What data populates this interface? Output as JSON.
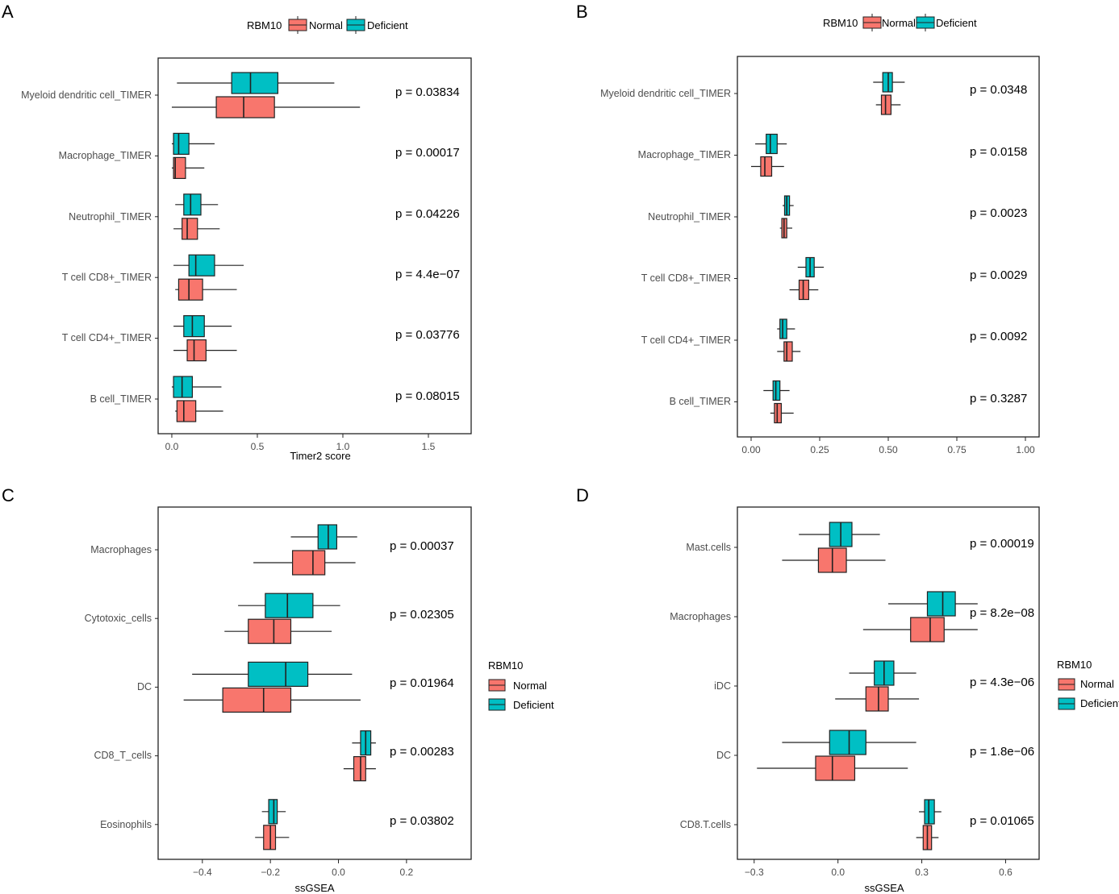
{
  "colors": {
    "normal": "#F8766D",
    "deficient": "#00BFC4",
    "stroke": "#222222"
  },
  "chart_data": [
    {
      "panel": "A",
      "type": "boxplot",
      "orientation": "horizontal",
      "xlabel": "Timer2 score",
      "xlim": [
        -0.08,
        1.75
      ],
      "xticks": [
        0,
        0.5,
        1,
        1.5
      ],
      "xtick_labels": [
        "0.0",
        "0.5",
        "1.0",
        "1.5"
      ],
      "legend": {
        "title": "RBM10",
        "position": "top",
        "entries": [
          "Normal",
          "Deficient"
        ]
      },
      "categories": [
        "Myeloid dendritic cell_TIMER",
        "Macrophage_TIMER",
        "Neutrophil_TIMER",
        "T cell CD8+_TIMER",
        "T cell CD4+_TIMER",
        "B cell_TIMER"
      ],
      "p_values": [
        "p = 0.03834",
        "p = 0.00017",
        "p = 0.04226",
        "p = 4.4e−07",
        "p = 0.03776",
        "p = 0.08015"
      ],
      "series": [
        {
          "name": "Normal",
          "boxes": [
            {
              "whisker_low": 0.0,
              "q1": 0.26,
              "median": 0.42,
              "q3": 0.6,
              "whisker_high": 1.1
            },
            {
              "whisker_low": 0.0,
              "q1": 0.01,
              "median": 0.02,
              "q3": 0.08,
              "whisker_high": 0.19
            },
            {
              "whisker_low": 0.01,
              "q1": 0.06,
              "median": 0.09,
              "q3": 0.15,
              "whisker_high": 0.28
            },
            {
              "whisker_low": 0.02,
              "q1": 0.04,
              "median": 0.1,
              "q3": 0.18,
              "whisker_high": 0.38
            },
            {
              "whisker_low": 0.01,
              "q1": 0.09,
              "median": 0.13,
              "q3": 0.2,
              "whisker_high": 0.38
            },
            {
              "whisker_low": 0.02,
              "q1": 0.03,
              "median": 0.07,
              "q3": 0.14,
              "whisker_high": 0.3
            }
          ]
        },
        {
          "name": "Deficient",
          "boxes": [
            {
              "whisker_low": 0.03,
              "q1": 0.35,
              "median": 0.46,
              "q3": 0.62,
              "whisker_high": 0.95
            },
            {
              "whisker_low": 0.0,
              "q1": 0.01,
              "median": 0.04,
              "q3": 0.1,
              "whisker_high": 0.25
            },
            {
              "whisker_low": 0.02,
              "q1": 0.07,
              "median": 0.11,
              "q3": 0.17,
              "whisker_high": 0.27
            },
            {
              "whisker_low": 0.01,
              "q1": 0.1,
              "median": 0.14,
              "q3": 0.25,
              "whisker_high": 0.42
            },
            {
              "whisker_low": 0.01,
              "q1": 0.07,
              "median": 0.12,
              "q3": 0.19,
              "whisker_high": 0.35
            },
            {
              "whisker_low": 0.0,
              "q1": 0.01,
              "median": 0.06,
              "q3": 0.12,
              "whisker_high": 0.29
            }
          ]
        }
      ]
    },
    {
      "panel": "B",
      "type": "boxplot",
      "orientation": "horizontal",
      "xlabel": "",
      "xlim": [
        -0.05,
        1.05
      ],
      "xticks": [
        0,
        0.25,
        0.5,
        0.75,
        1
      ],
      "xtick_labels": [
        "0.00",
        "0.25",
        "0.50",
        "0.75",
        "1.00"
      ],
      "legend": {
        "title": "RBM10",
        "position": "top",
        "entries": [
          "Normal",
          "Deficient"
        ]
      },
      "categories": [
        "Myeloid dendritic cell_TIMER",
        "Macrophage_TIMER",
        "Neutrophil_TIMER",
        "T cell CD8+_TIMER",
        "T cell CD4+_TIMER",
        "B cell_TIMER"
      ],
      "p_values": [
        "p = 0.0348",
        "p = 0.0158",
        "p = 0.0023",
        "p = 0.0029",
        "p = 0.0092",
        "p = 0.3287"
      ],
      "series": [
        {
          "name": "Normal",
          "boxes": [
            {
              "whisker_low": 0.455,
              "q1": 0.475,
              "median": 0.49,
              "q3": 0.51,
              "whisker_high": 0.545
            },
            {
              "whisker_low": 0.0,
              "q1": 0.035,
              "median": 0.05,
              "q3": 0.075,
              "whisker_high": 0.12
            },
            {
              "whisker_low": 0.105,
              "q1": 0.112,
              "median": 0.12,
              "q3": 0.13,
              "whisker_high": 0.15
            },
            {
              "whisker_low": 0.14,
              "q1": 0.175,
              "median": 0.19,
              "q3": 0.21,
              "whisker_high": 0.245
            },
            {
              "whisker_low": 0.095,
              "q1": 0.12,
              "median": 0.13,
              "q3": 0.15,
              "whisker_high": 0.18
            },
            {
              "whisker_low": 0.07,
              "q1": 0.085,
              "median": 0.095,
              "q3": 0.11,
              "whisker_high": 0.155
            }
          ]
        },
        {
          "name": "Deficient",
          "boxes": [
            {
              "whisker_low": 0.445,
              "q1": 0.48,
              "median": 0.5,
              "q3": 0.515,
              "whisker_high": 0.56
            },
            {
              "whisker_low": 0.015,
              "q1": 0.055,
              "median": 0.07,
              "q3": 0.095,
              "whisker_high": 0.13
            },
            {
              "whisker_low": 0.115,
              "q1": 0.122,
              "median": 0.13,
              "q3": 0.14,
              "whisker_high": 0.155
            },
            {
              "whisker_low": 0.17,
              "q1": 0.2,
              "median": 0.215,
              "q3": 0.23,
              "whisker_high": 0.265
            },
            {
              "whisker_low": 0.095,
              "q1": 0.105,
              "median": 0.115,
              "q3": 0.13,
              "whisker_high": 0.16
            },
            {
              "whisker_low": 0.045,
              "q1": 0.08,
              "median": 0.09,
              "q3": 0.105,
              "whisker_high": 0.14
            }
          ]
        }
      ]
    },
    {
      "panel": "C",
      "type": "boxplot",
      "orientation": "horizontal",
      "xlabel": "ssGSEA",
      "xlim": [
        -0.53,
        0.39
      ],
      "xticks": [
        -0.4,
        -0.2,
        0,
        0.2
      ],
      "xtick_labels": [
        "−0.4",
        "−0.2",
        "0.0",
        "0.2"
      ],
      "legend": {
        "title": "RBM10",
        "position": "right",
        "entries": [
          "Normal",
          "Deficient"
        ]
      },
      "categories": [
        "Macrophages",
        "Cytotoxic_cells",
        "DC",
        "CD8_T_cells",
        "Eosinophils"
      ],
      "p_values": [
        "p = 0.00037",
        "p = 0.02305",
        "p = 0.01964",
        "p = 0.00283",
        "p = 0.03802"
      ],
      "series": [
        {
          "name": "Normal",
          "boxes": [
            {
              "whisker_low": -0.25,
              "q1": -0.135,
              "median": -0.075,
              "q3": -0.04,
              "whisker_high": 0.05
            },
            {
              "whisker_low": -0.335,
              "q1": -0.265,
              "median": -0.19,
              "q3": -0.14,
              "whisker_high": -0.02
            },
            {
              "whisker_low": -0.455,
              "q1": -0.34,
              "median": -0.22,
              "q3": -0.14,
              "whisker_high": 0.065
            },
            {
              "whisker_low": 0.015,
              "q1": 0.045,
              "median": 0.065,
              "q3": 0.08,
              "whisker_high": 0.11
            },
            {
              "whisker_low": -0.245,
              "q1": -0.22,
              "median": -0.2,
              "q3": -0.185,
              "whisker_high": -0.145
            }
          ]
        },
        {
          "name": "Deficient",
          "boxes": [
            {
              "whisker_low": -0.14,
              "q1": -0.06,
              "median": -0.03,
              "q3": -0.005,
              "whisker_high": 0.055
            },
            {
              "whisker_low": -0.295,
              "q1": -0.215,
              "median": -0.15,
              "q3": -0.075,
              "whisker_high": 0.005
            },
            {
              "whisker_low": -0.43,
              "q1": -0.265,
              "median": -0.155,
              "q3": -0.09,
              "whisker_high": 0.04
            },
            {
              "whisker_low": 0.04,
              "q1": 0.065,
              "median": 0.08,
              "q3": 0.095,
              "whisker_high": 0.11
            },
            {
              "whisker_low": -0.225,
              "q1": -0.205,
              "median": -0.19,
              "q3": -0.18,
              "whisker_high": -0.155
            }
          ]
        }
      ]
    },
    {
      "panel": "D",
      "type": "boxplot",
      "orientation": "horizontal",
      "xlabel": "ssGSEA",
      "xlim": [
        -0.36,
        0.72
      ],
      "xticks": [
        -0.3,
        0,
        0.3,
        0.6
      ],
      "xtick_labels": [
        "−0.3",
        "0.0",
        "0.3",
        "0.6"
      ],
      "legend": {
        "title": "RBM10",
        "position": "right",
        "entries": [
          "Normal",
          "Deficient"
        ]
      },
      "categories": [
        "Mast.cells",
        "Macrophages",
        "iDC",
        "DC",
        "CD8.T.cells"
      ],
      "p_values": [
        "p = 0.00019",
        "p = 8.2e−08",
        "p = 4.3e−06",
        "p = 1.8e−06",
        "p = 0.01065"
      ],
      "series": [
        {
          "name": "Normal",
          "boxes": [
            {
              "whisker_low": -0.2,
              "q1": -0.07,
              "median": -0.02,
              "q3": 0.03,
              "whisker_high": 0.17
            },
            {
              "whisker_low": 0.09,
              "q1": 0.26,
              "median": 0.33,
              "q3": 0.38,
              "whisker_high": 0.5
            },
            {
              "whisker_low": -0.01,
              "q1": 0.1,
              "median": 0.145,
              "q3": 0.18,
              "whisker_high": 0.29
            },
            {
              "whisker_low": -0.29,
              "q1": -0.08,
              "median": -0.02,
              "q3": 0.06,
              "whisker_high": 0.25
            },
            {
              "whisker_low": 0.28,
              "q1": 0.305,
              "median": 0.32,
              "q3": 0.335,
              "whisker_high": 0.36
            }
          ]
        },
        {
          "name": "Deficient",
          "boxes": [
            {
              "whisker_low": -0.14,
              "q1": -0.03,
              "median": 0.01,
              "q3": 0.05,
              "whisker_high": 0.15
            },
            {
              "whisker_low": 0.18,
              "q1": 0.32,
              "median": 0.375,
              "q3": 0.42,
              "whisker_high": 0.5
            },
            {
              "whisker_low": 0.04,
              "q1": 0.13,
              "median": 0.165,
              "q3": 0.2,
              "whisker_high": 0.28
            },
            {
              "whisker_low": -0.2,
              "q1": -0.03,
              "median": 0.04,
              "q3": 0.1,
              "whisker_high": 0.28
            },
            {
              "whisker_low": 0.29,
              "q1": 0.31,
              "median": 0.325,
              "q3": 0.345,
              "whisker_high": 0.37
            }
          ]
        }
      ]
    }
  ]
}
